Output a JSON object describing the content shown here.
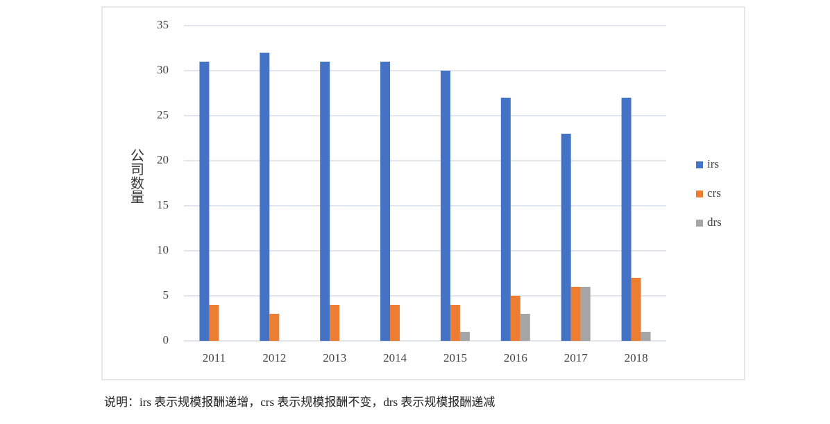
{
  "chart_data": {
    "type": "bar",
    "y_label": "公司数量",
    "categories": [
      "2011",
      "2012",
      "2013",
      "2014",
      "2015",
      "2016",
      "2017",
      "2018"
    ],
    "series": [
      {
        "name": "irs",
        "color": "#4472c4",
        "values": [
          31,
          32,
          31,
          31,
          30,
          27,
          23,
          27
        ]
      },
      {
        "name": "crs",
        "color": "#ed7d31",
        "values": [
          4,
          3,
          4,
          4,
          4,
          5,
          6,
          7
        ]
      },
      {
        "name": "drs",
        "color": "#a5a5a5",
        "values": [
          0,
          0,
          0,
          0,
          1,
          3,
          6,
          1
        ]
      }
    ],
    "ylim": [
      0,
      35
    ],
    "yticks": [
      0,
      5,
      10,
      15,
      20,
      25,
      30,
      35
    ],
    "grid": true,
    "legend": "right",
    "note": "说明：irs 表示规模报酬递增，crs 表示规模报酬不变，drs 表示规模报酬递减"
  }
}
